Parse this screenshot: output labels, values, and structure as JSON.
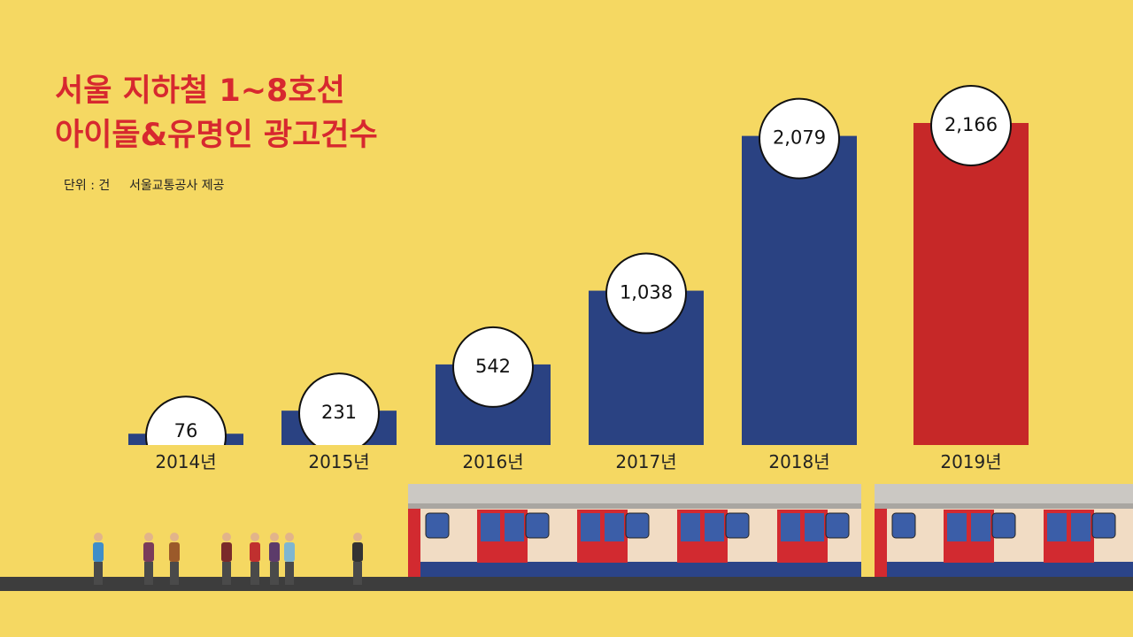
{
  "chart_data": {
    "type": "bar",
    "title": [
      "서울 지하철 1~8호선",
      "아이돌&유명인 광고건수"
    ],
    "unit": "단위 : 건",
    "source": "서울교통공사 제공",
    "categories": [
      "2014년",
      "2015년",
      "2016년",
      "2017년",
      "2018년",
      "2019년"
    ],
    "values": [
      76,
      231,
      542,
      1038,
      2079,
      2166
    ],
    "value_labels": [
      "76",
      "231",
      "542",
      "1,038",
      "2,079",
      "2,166"
    ],
    "colors": [
      "#2a4282",
      "#2a4282",
      "#2a4282",
      "#2a4282",
      "#2a4282",
      "#c62828"
    ]
  }
}
